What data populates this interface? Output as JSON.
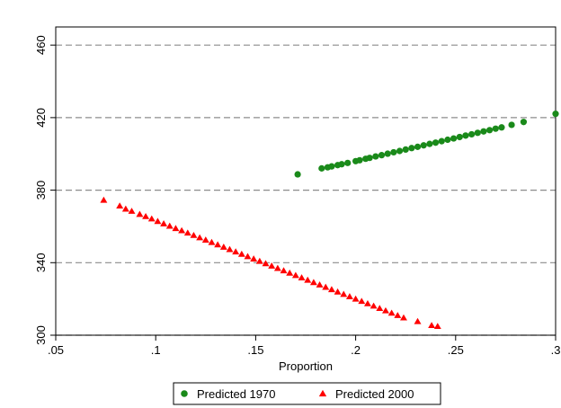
{
  "chart_data": {
    "type": "scatter",
    "title": "",
    "xlabel": "Proportion",
    "ylabel": "",
    "xlim": [
      0.05,
      0.3
    ],
    "ylim": [
      300,
      470
    ],
    "x_ticks": [
      0.05,
      0.1,
      0.15,
      0.2,
      0.25,
      0.3
    ],
    "x_tick_labels": [
      ".05",
      ".1",
      ".15",
      ".2",
      ".25",
      ".3"
    ],
    "y_ticks": [
      300,
      340,
      380,
      420,
      460
    ],
    "y_tick_labels": [
      "300",
      "340",
      "380",
      "420",
      "460"
    ],
    "grid": "horizontal dashed",
    "legend_position": "bottom",
    "series": [
      {
        "name": "Predicted 1970",
        "marker": "circle",
        "color": "#1a8a1a",
        "points": [
          [
            0.171,
            388.7
          ],
          [
            0.183,
            392.0
          ],
          [
            0.186,
            392.6
          ],
          [
            0.188,
            393.1
          ],
          [
            0.191,
            393.8
          ],
          [
            0.193,
            394.3
          ],
          [
            0.196,
            395.0
          ],
          [
            0.2,
            396.0
          ],
          [
            0.202,
            396.5
          ],
          [
            0.205,
            397.3
          ],
          [
            0.207,
            397.8
          ],
          [
            0.21,
            398.6
          ],
          [
            0.213,
            399.3
          ],
          [
            0.216,
            400.1
          ],
          [
            0.219,
            400.9
          ],
          [
            0.222,
            401.6
          ],
          [
            0.225,
            402.4
          ],
          [
            0.228,
            403.2
          ],
          [
            0.231,
            403.9
          ],
          [
            0.234,
            404.7
          ],
          [
            0.237,
            405.5
          ],
          [
            0.24,
            406.2
          ],
          [
            0.243,
            407.0
          ],
          [
            0.246,
            407.8
          ],
          [
            0.249,
            408.5
          ],
          [
            0.252,
            409.3
          ],
          [
            0.255,
            410.1
          ],
          [
            0.258,
            410.8
          ],
          [
            0.261,
            411.6
          ],
          [
            0.264,
            412.4
          ],
          [
            0.267,
            413.1
          ],
          [
            0.27,
            413.9
          ],
          [
            0.273,
            414.6
          ],
          [
            0.278,
            416.0
          ],
          [
            0.284,
            417.6
          ],
          [
            0.3,
            422.1
          ]
        ]
      },
      {
        "name": "Predicted 2000",
        "marker": "triangle",
        "color": "#ff0000",
        "points": [
          [
            0.074,
            374.5
          ],
          [
            0.082,
            371.3
          ],
          [
            0.085,
            369.6
          ],
          [
            0.088,
            368.4
          ],
          [
            0.092,
            366.7
          ],
          [
            0.095,
            365.5
          ],
          [
            0.098,
            364.2
          ],
          [
            0.101,
            362.8
          ],
          [
            0.104,
            361.5
          ],
          [
            0.107,
            360.2
          ],
          [
            0.11,
            358.9
          ],
          [
            0.113,
            357.7
          ],
          [
            0.116,
            356.4
          ],
          [
            0.119,
            355.1
          ],
          [
            0.122,
            353.8
          ],
          [
            0.125,
            352.5
          ],
          [
            0.128,
            351.2
          ],
          [
            0.131,
            349.9
          ],
          [
            0.134,
            348.6
          ],
          [
            0.137,
            347.3
          ],
          [
            0.14,
            346.0
          ],
          [
            0.143,
            344.7
          ],
          [
            0.146,
            343.4
          ],
          [
            0.149,
            342.1
          ],
          [
            0.152,
            340.8
          ],
          [
            0.155,
            339.5
          ],
          [
            0.158,
            338.2
          ],
          [
            0.161,
            336.9
          ],
          [
            0.164,
            335.6
          ],
          [
            0.167,
            334.3
          ],
          [
            0.17,
            333.0
          ],
          [
            0.173,
            331.7
          ],
          [
            0.176,
            330.4
          ],
          [
            0.179,
            329.1
          ],
          [
            0.182,
            327.8
          ],
          [
            0.185,
            326.5
          ],
          [
            0.188,
            325.2
          ],
          [
            0.191,
            323.9
          ],
          [
            0.194,
            322.6
          ],
          [
            0.197,
            321.3
          ],
          [
            0.2,
            320.0
          ],
          [
            0.203,
            318.7
          ],
          [
            0.206,
            317.4
          ],
          [
            0.209,
            316.1
          ],
          [
            0.212,
            314.8
          ],
          [
            0.215,
            313.5
          ],
          [
            0.218,
            312.2
          ],
          [
            0.221,
            310.9
          ],
          [
            0.224,
            309.6
          ],
          [
            0.231,
            307.6
          ],
          [
            0.238,
            305.4
          ],
          [
            0.241,
            304.9
          ]
        ]
      }
    ]
  }
}
